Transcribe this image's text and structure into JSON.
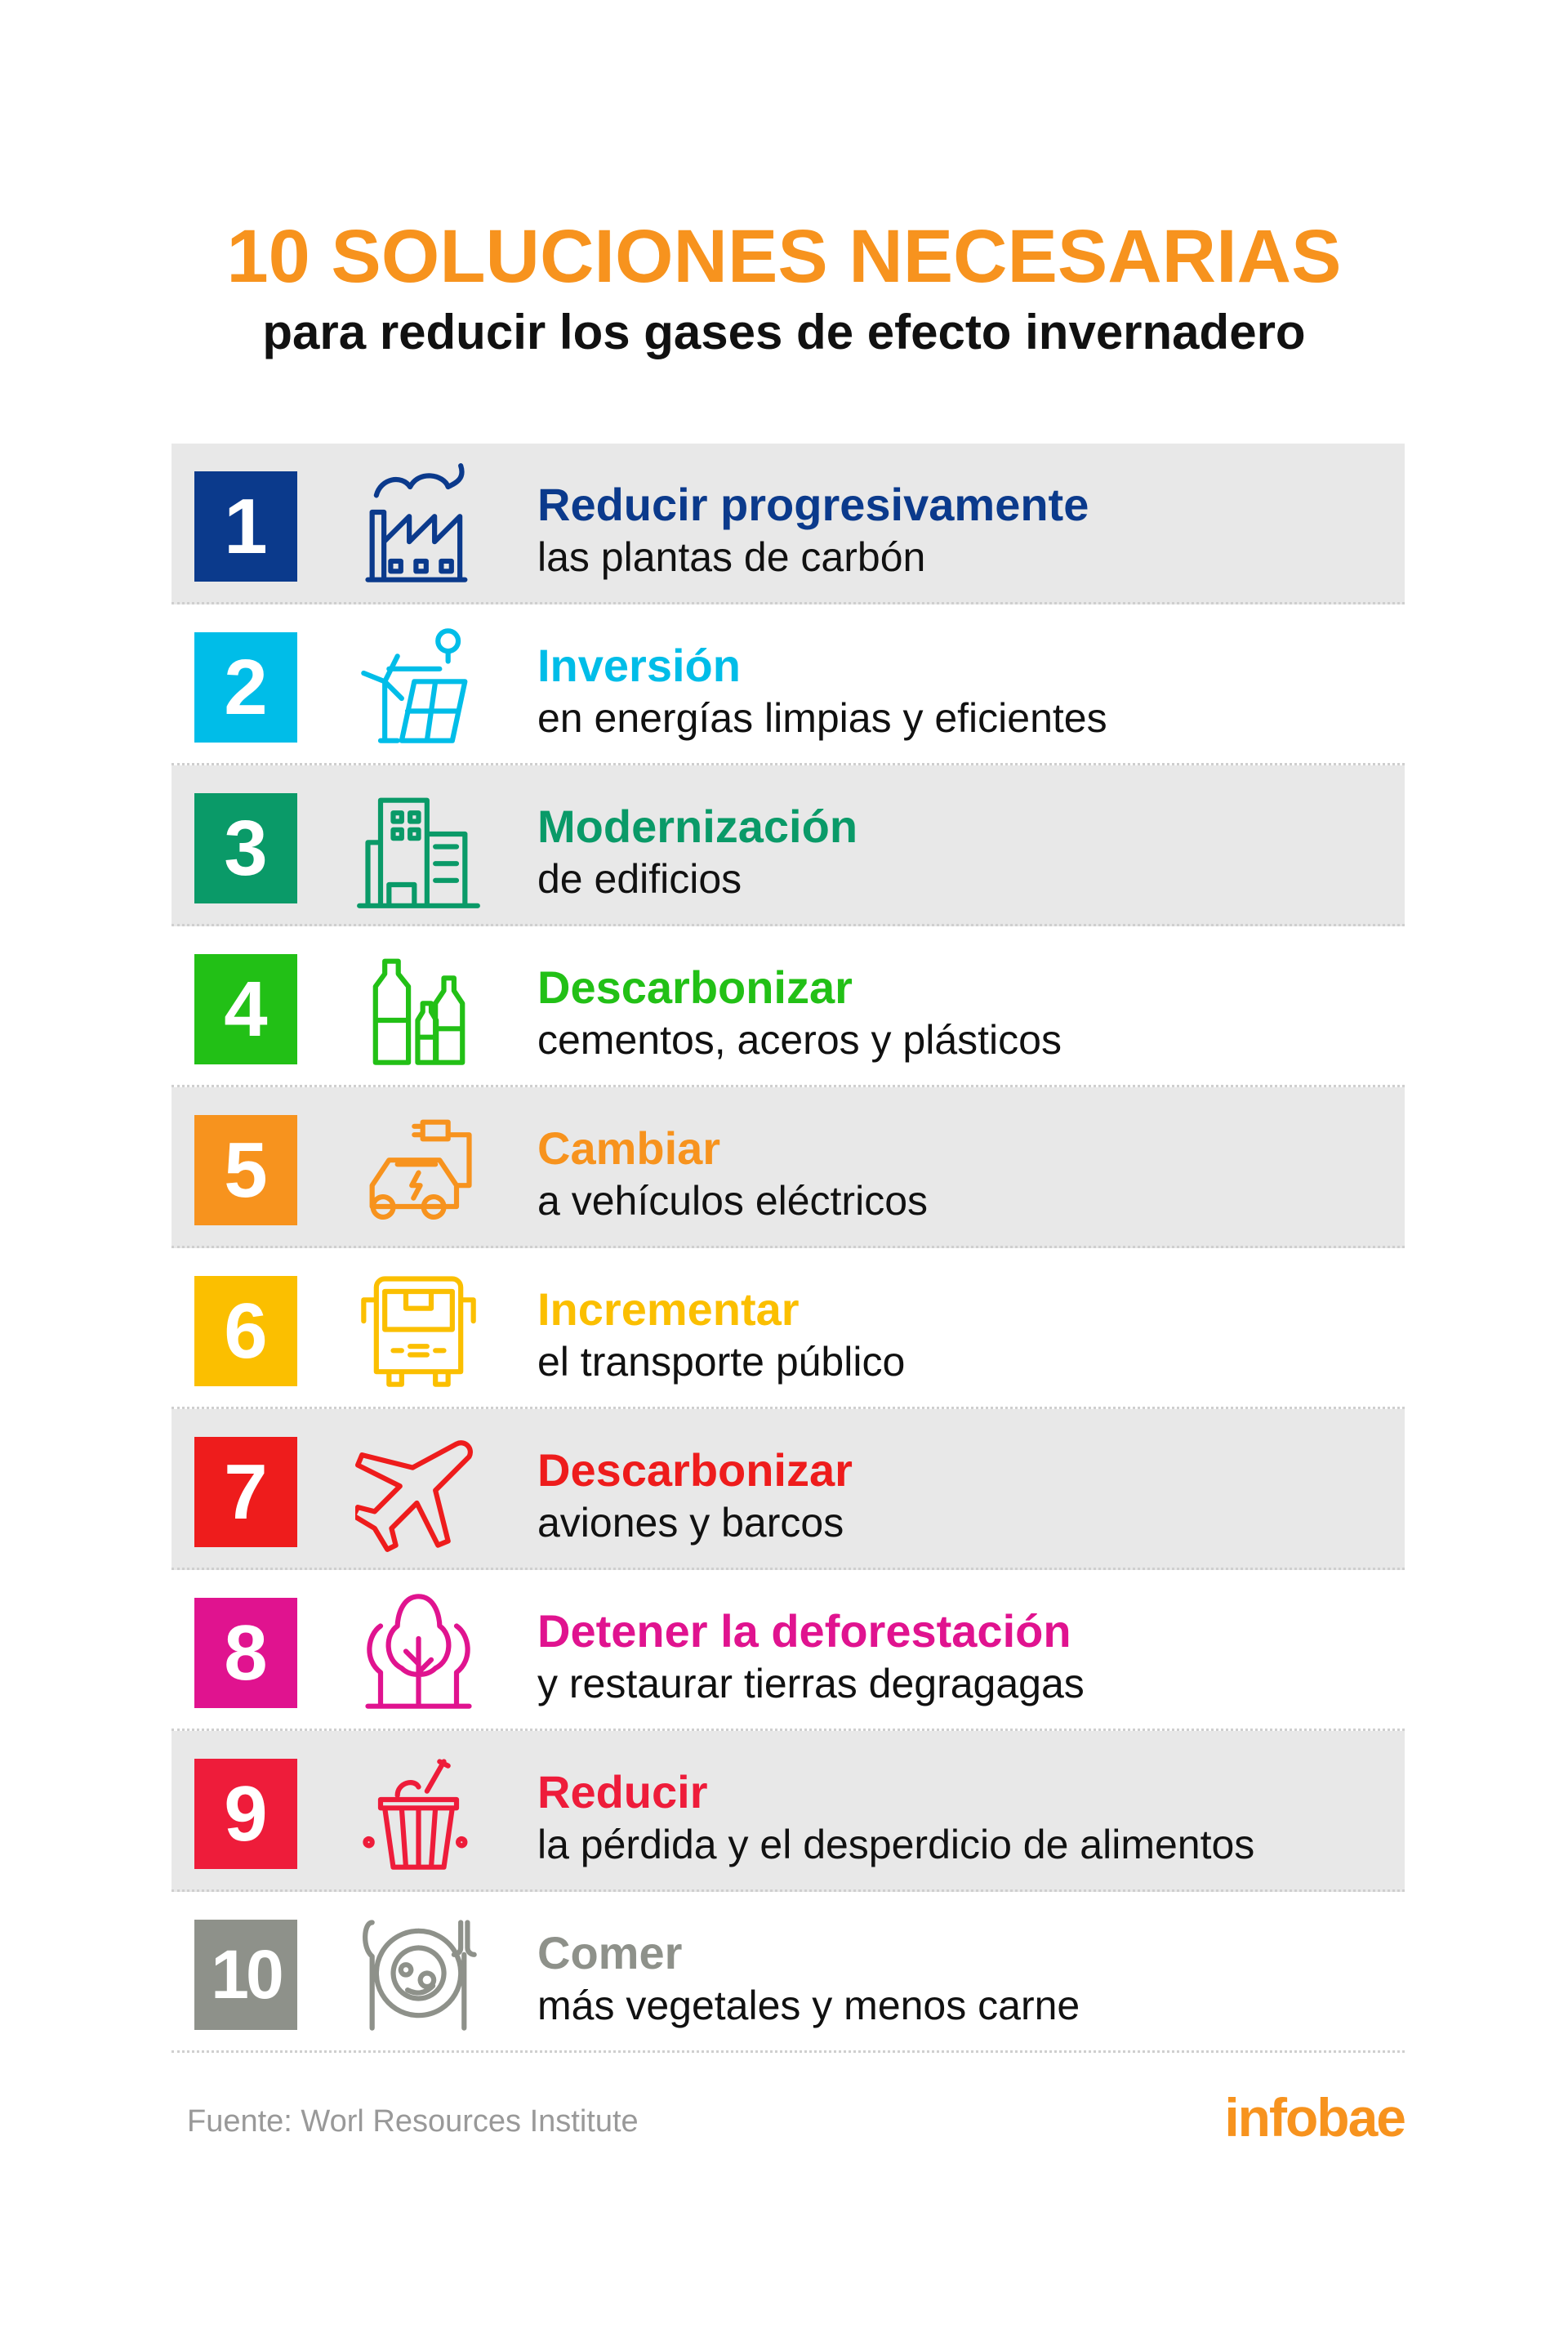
{
  "header": {
    "title": "10 SOLUCIONES NECESARIAS",
    "subtitle": "para reducir los gases de efecto invernadero"
  },
  "items": [
    {
      "number": "1",
      "title": "Reducir progresivamente",
      "subtitle": "las plantas de carbón",
      "color": "#0b3a8c",
      "icon": "factory-icon"
    },
    {
      "number": "2",
      "title": "Inversión",
      "subtitle": "en energías limpias y eficientes",
      "color": "#00bde8",
      "icon": "wind-solar-energy-icon"
    },
    {
      "number": "3",
      "title": "Modernización",
      "subtitle": "de edificios",
      "color": "#0a9a68",
      "icon": "buildings-icon"
    },
    {
      "number": "4",
      "title": "Descarbonizar",
      "subtitle": "cementos, aceros y plásticos",
      "color": "#22c016",
      "icon": "plastic-bottles-icon"
    },
    {
      "number": "5",
      "title": "Cambiar",
      "subtitle": "a vehículos eléctricos",
      "color": "#f7931e",
      "icon": "electric-car-icon"
    },
    {
      "number": "6",
      "title": "Incrementar",
      "subtitle": "el transporte público",
      "color": "#fbbf00",
      "icon": "bus-icon"
    },
    {
      "number": "7",
      "title": "Descarbonizar",
      "subtitle": "aviones y barcos",
      "color": "#ee1c1c",
      "icon": "airplane-icon"
    },
    {
      "number": "8",
      "title": "Detener la deforestación",
      "subtitle": "y restaurar tierras degragagas",
      "color": "#e0138f",
      "icon": "trees-icon"
    },
    {
      "number": "9",
      "title": "Reducir",
      "subtitle": "la pérdida y el desperdicio de alimentos",
      "color": "#ee1c3a",
      "icon": "food-basket-icon"
    },
    {
      "number": "10",
      "title": "Comer",
      "subtitle": "más vegetales y menos carne",
      "color": "#8e918a",
      "icon": "plate-cutlery-icon"
    }
  ],
  "footer": {
    "source": "Fuente: Worl Resources Institute",
    "logo": "infobae"
  }
}
